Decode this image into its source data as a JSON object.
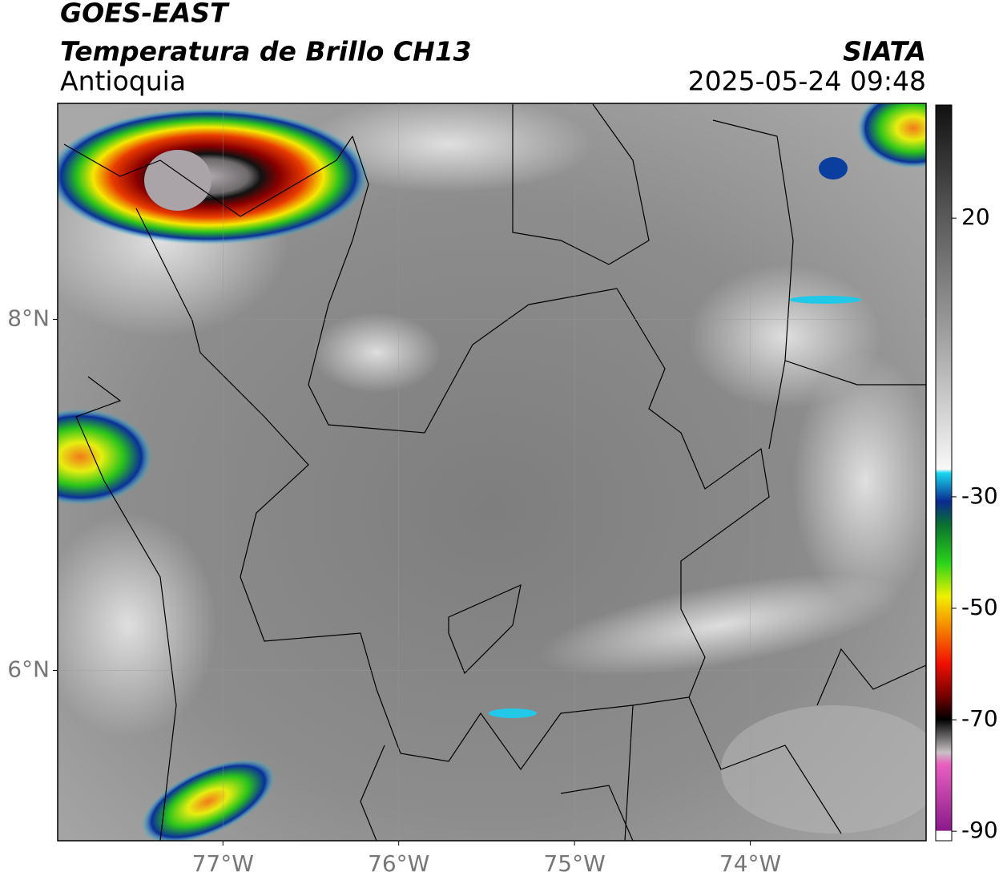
{
  "map": {
    "title": "GOES-EAST",
    "subtitle": "Temperatura de Brillo CH13",
    "region": "Antioquia",
    "source": "SIATA",
    "datetime": "2025-05-24 09:48",
    "xlim": [
      -77.94,
      -73.0
    ],
    "ylim": [
      5.03,
      9.23
    ],
    "xticks": [
      {
        "value": -77,
        "label": "77°W"
      },
      {
        "value": -76,
        "label": "76°W"
      },
      {
        "value": -75,
        "label": "75°W"
      },
      {
        "value": -74,
        "label": "74°W"
      }
    ],
    "yticks": [
      {
        "value": 8,
        "label": "8°N"
      },
      {
        "value": 6,
        "label": "6°N"
      }
    ],
    "colorbar": {
      "lim": [
        -91.7,
        40.3
      ],
      "ticks": [
        20,
        -30,
        -50,
        -70,
        -90
      ]
    }
  }
}
